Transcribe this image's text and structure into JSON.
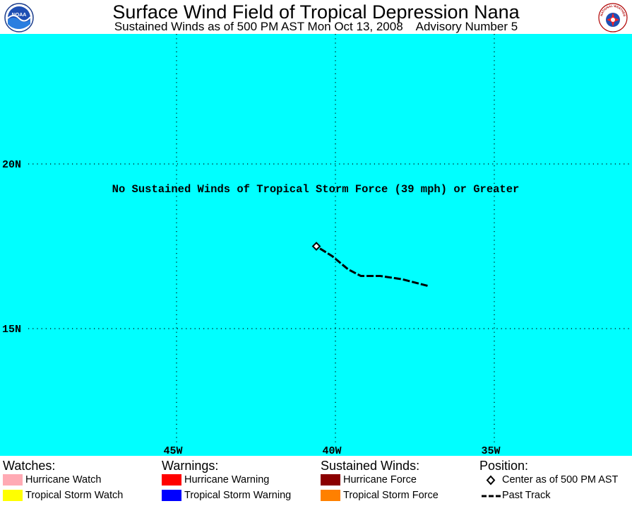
{
  "header": {
    "title": "Surface Wind Field of Tropical Depression Nana",
    "subtitle": "Sustained Winds as of 500 PM AST Mon Oct 13, 2008    Advisory Number 5",
    "logo_left_text": "NOAA",
    "logo_right_text": "NATIONAL WEATHER SERVICE"
  },
  "map": {
    "background_color": "#00ffff",
    "lat_labels": [
      "20N",
      "15N"
    ],
    "lon_labels": [
      "45W",
      "40W",
      "35W"
    ],
    "message": "No Sustained Winds of Tropical Storm Force (39 mph) or Greater",
    "storm_center": {
      "lat": 17.5,
      "lon": 40.6
    },
    "past_track": [
      {
        "lat": 16.3,
        "lon": 37.1
      },
      {
        "lat": 16.5,
        "lon": 37.9
      },
      {
        "lat": 16.6,
        "lon": 38.6
      },
      {
        "lat": 16.6,
        "lon": 39.2
      },
      {
        "lat": 16.8,
        "lon": 39.6
      },
      {
        "lat": 17.2,
        "lon": 40.1
      },
      {
        "lat": 17.5,
        "lon": 40.6
      }
    ]
  },
  "legend": {
    "watches": {
      "heading": "Watches:",
      "items": [
        {
          "label": "Hurricane Watch",
          "color": "#ffaab4"
        },
        {
          "label": "Tropical Storm Watch",
          "color": "#ffff00"
        }
      ]
    },
    "warnings": {
      "heading": "Warnings:",
      "items": [
        {
          "label": "Hurricane Warning",
          "color": "#ff0000"
        },
        {
          "label": "Tropical Storm Warning",
          "color": "#0000ff"
        }
      ]
    },
    "winds": {
      "heading": "Sustained Winds:",
      "items": [
        {
          "label": "Hurricane Force",
          "color": "#8b0000"
        },
        {
          "label": "Tropical Storm Force",
          "color": "#ff8000"
        }
      ]
    },
    "position": {
      "heading": "Position:",
      "items": [
        {
          "label": "Center as of 500 PM AST",
          "icon": "diamond-icon"
        },
        {
          "label": "Past Track",
          "icon": "dashed-line-icon"
        }
      ]
    }
  }
}
